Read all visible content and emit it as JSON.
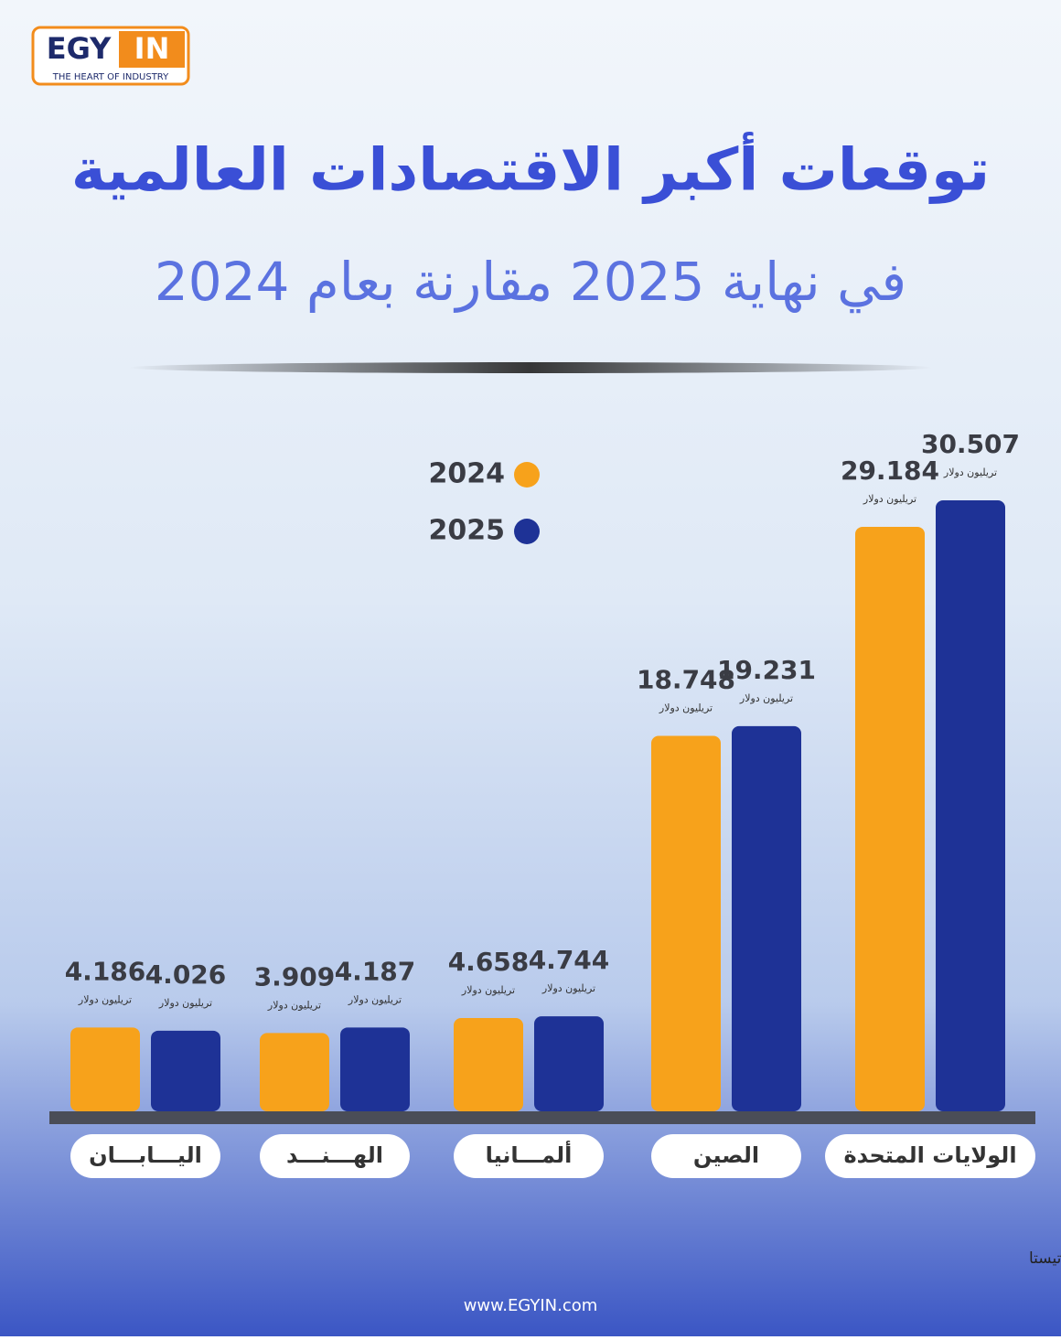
{
  "logo": {
    "left": "EGY",
    "right": "IN",
    "tagline": "THE HEART OF INDUSTRY"
  },
  "chart_data": {
    "type": "bar",
    "title": "توقعات أكبر الاقتصادات العالمية",
    "subtitle": "في نهاية 2025 مقارنة بعام 2024",
    "unit": "تريليون دولار",
    "categories": [
      "اليـــابـــان",
      "الهـــنـــد",
      "ألمـــانيا",
      "الصين",
      "الولايات المتحدة"
    ],
    "series": [
      {
        "name": "2024",
        "color": "#f7a21b",
        "values": [
          4.186,
          3.909,
          4.658,
          18.748,
          29.184
        ]
      },
      {
        "name": "2025",
        "color": "#1e3296",
        "values": [
          4.026,
          4.187,
          4.744,
          19.231,
          30.507
        ]
      }
    ],
    "source": "المصدر: ستاتيستا"
  },
  "footer": "www.EGYIN.com"
}
